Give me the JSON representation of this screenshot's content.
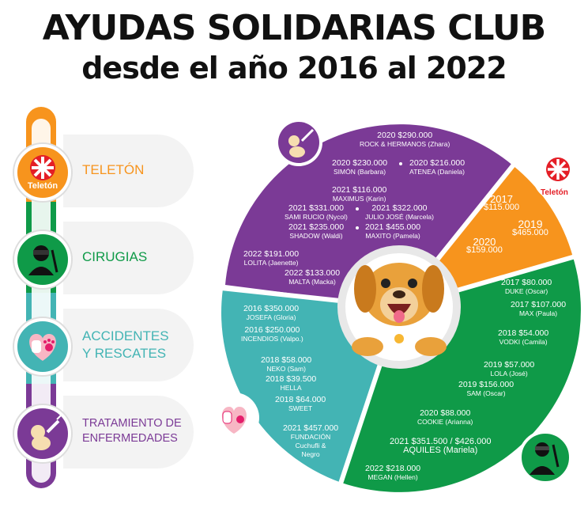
{
  "header": {
    "title": "AYUDAS SOLIDARIAS CLUB",
    "subtitle": "desde el año 2016 al 2022"
  },
  "categories": [
    {
      "label": "TELETÓN",
      "color": "#f7941d",
      "badge_text": "Teletón"
    },
    {
      "label": "CIRUGIAS",
      "color": "#0f9a48"
    },
    {
      "label": "ACCIDENTES\nY RESCATES",
      "color": "#43b4b4"
    },
    {
      "label": "TRATAMIENTO DE\nENFERMEDADES",
      "color": "#7b3a96"
    }
  ],
  "wheel_badge_text": "Teletón",
  "sections": {
    "purple": [
      {
        "a": "2020 $290.000",
        "b": "ROCK & HERMANOS (Zhara)"
      },
      {
        "a": "2020 $230.000",
        "b": "SIMÓN (Barbara)"
      },
      {
        "a": "2020 $216.000",
        "b": "ATENEA (Daniela)"
      },
      {
        "a": "2021 $116.000",
        "b": "MAXIMUS (Karin)"
      },
      {
        "a": "2021 $331.000",
        "b": "SAMI RUCIO (Nycol)"
      },
      {
        "a": "2021 $322.000",
        "b": "JULIO JOSÉ (Marcela)"
      },
      {
        "a": "2021 $235.000",
        "b": "SHADOW (Waldi)"
      },
      {
        "a": "2021 $455.000",
        "b": "MAXITO (Pamela)"
      },
      {
        "a": "2022 $191.000",
        "b": "LOLITA (Jaenette)"
      },
      {
        "a": "2022 $133.000",
        "b": "MALTA (Macka)"
      }
    ],
    "orange": [
      {
        "a": "2017",
        "b": "$115.000"
      },
      {
        "a": "2019",
        "b": "$465.000"
      },
      {
        "a": "2020",
        "b": "$159.000"
      }
    ],
    "teal": [
      {
        "a": "2016 $350.000",
        "b": "JOSEFA (Gloria)"
      },
      {
        "a": "2016 $250.000",
        "b": "INCENDIOS (Valpo.)"
      },
      {
        "a": "2018 $58.000",
        "b": "NEKO (Sam)"
      },
      {
        "a": "2018 $39.500",
        "b": "HELLA"
      },
      {
        "a": "2018 $64.000",
        "b": "SWEET"
      },
      {
        "a": "2021 $457.000",
        "b": "FUNDACIÓN\nCuchufli &\nNegro"
      }
    ],
    "green": [
      {
        "a": "2017 $80.000",
        "b": "DUKE (Oscar)"
      },
      {
        "a": "2017 $107.000",
        "b": "MAX (Paula)"
      },
      {
        "a": "2018 $54.000",
        "b": "VODKI (Camila)"
      },
      {
        "a": "2019 $57.000",
        "b": "LOLA (José)"
      },
      {
        "a": "2019 $156.000",
        "b": "SAM (Oscar)"
      },
      {
        "a": "2020 $88.000",
        "b": "COOKIE (Arianna)"
      },
      {
        "a": "2021 $351.500 / $426.000",
        "b": "AQUILES (Mariela)"
      },
      {
        "a": "2022 $218.000",
        "b": "MEGAN (Hellen)"
      }
    ]
  }
}
